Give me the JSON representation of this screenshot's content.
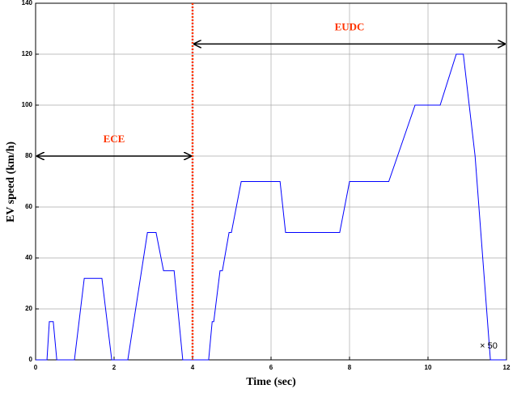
{
  "chart_data": {
    "type": "line",
    "x_label": "Time (sec)",
    "y_label": "EV speed (km/h)",
    "x_multiplier_label": "× 50",
    "x": [
      0,
      0.29,
      0.35,
      0.45,
      0.54,
      0.99,
      1.24,
      1.69,
      1.94,
      2.35,
      2.85,
      3.07,
      3.26,
      3.53,
      3.75,
      4.41,
      4.5,
      4.54,
      4.7,
      4.76,
      4.93,
      4.99,
      5.24,
      6.23,
      6.37,
      7.75,
      8.0,
      9.0,
      9.67,
      10.31,
      10.72,
      10.9,
      11.2,
      11.59,
      12
    ],
    "series": [
      {
        "name": "EV speed",
        "color": "#0000ff",
        "values": [
          0,
          0,
          15,
          15,
          0,
          0,
          32,
          32,
          0,
          0,
          50,
          50,
          35,
          35,
          0,
          0,
          15,
          15,
          35,
          35,
          50,
          50,
          70,
          70,
          50,
          50,
          70,
          70,
          100,
          100,
          120,
          120,
          80,
          0,
          0
        ]
      }
    ],
    "xlim": [
      0,
      12
    ],
    "xticks": [
      0,
      2,
      4,
      6,
      8,
      10,
      12
    ],
    "ylim": [
      0,
      140
    ],
    "yticks": [
      0,
      20,
      40,
      60,
      80,
      100,
      120,
      140
    ],
    "grid": true,
    "vline": {
      "x": 4,
      "color": "#ff3300"
    },
    "annotations": [
      {
        "text": "ECE",
        "x": [
          0,
          4
        ],
        "y": 80
      },
      {
        "text": "EUDC",
        "x": [
          4,
          12
        ],
        "y": 124
      }
    ]
  }
}
